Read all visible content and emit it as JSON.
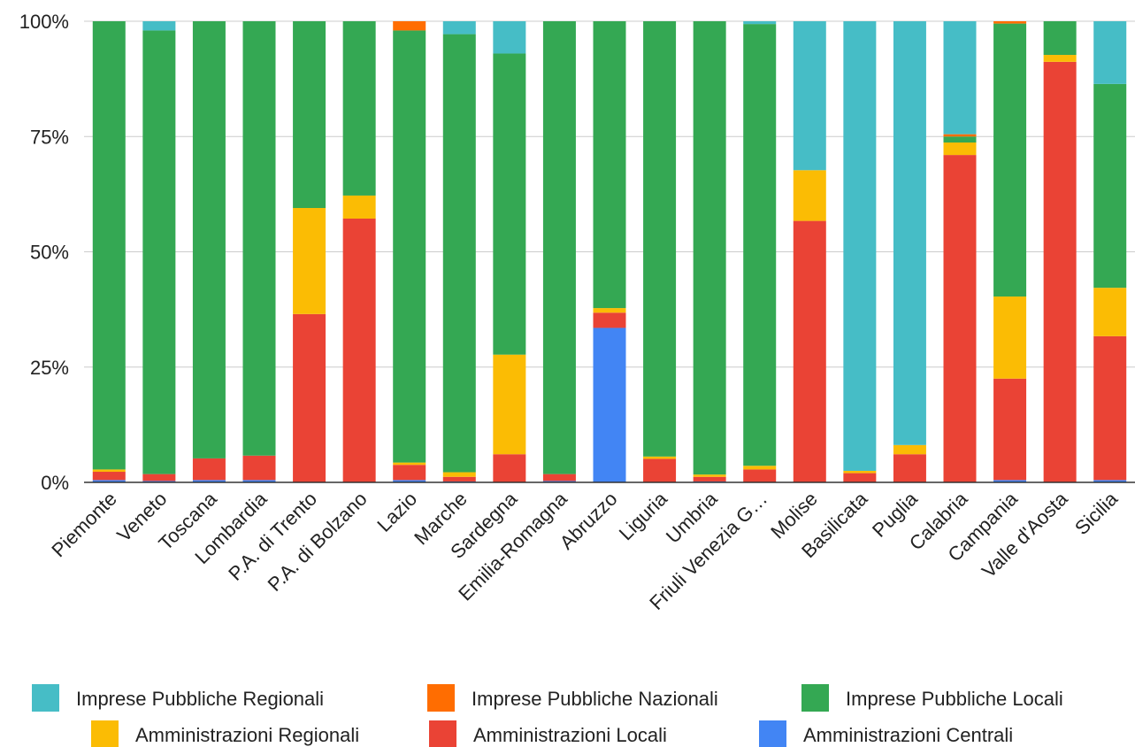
{
  "chart_data": {
    "type": "bar",
    "stacked": true,
    "normalized": true,
    "categories": [
      "Piemonte",
      "Veneto",
      "Toscana",
      "Lombardia",
      "P.A. di Trento",
      "P.A. di Bolzano",
      "Lazio",
      "Marche",
      "Sardegna",
      "Emilia-Romagna",
      "Abruzzo",
      "Liguria",
      "Umbria",
      "Friuli Venezia G…",
      "Molise",
      "Basilicata",
      "Puglia",
      "Calabria",
      "Campania",
      "Valle d'Aosta",
      "Sicilia"
    ],
    "y_ticks": [
      "0%",
      "25%",
      "50%",
      "75%",
      "100%"
    ],
    "ylim": [
      0,
      100
    ],
    "grid": true,
    "legend_position": "bottom",
    "series": [
      {
        "name": "Amministrazioni Centrali",
        "color": "#4285f4",
        "values": [
          0.5,
          0.3,
          0.5,
          0.5,
          0,
          0,
          0.5,
          0.2,
          0,
          0.3,
          33.5,
          0,
          0.2,
          0,
          0,
          0,
          0,
          0,
          0.5,
          0,
          0.5
        ]
      },
      {
        "name": "Amministrazioni Locali",
        "color": "#ea4335",
        "values": [
          1.8,
          1.5,
          4.7,
          5.3,
          36.5,
          57.2,
          3.3,
          1.0,
          6.1,
          1.5,
          3.3,
          5.1,
          1.0,
          2.8,
          56.7,
          2.0,
          6.1,
          71.0,
          22.0,
          91.2,
          31.2
        ]
      },
      {
        "name": "Amministrazioni Regionali",
        "color": "#fbbc04",
        "values": [
          0.5,
          0,
          0,
          0,
          23.0,
          5.0,
          0.5,
          1.0,
          21.6,
          0,
          1.0,
          0.5,
          0.5,
          0.8,
          11.0,
          0.5,
          2.0,
          2.7,
          17.8,
          1.5,
          10.5
        ]
      },
      {
        "name": "Imprese Pubbliche Locali",
        "color": "#34a853",
        "values": [
          97.2,
          96.2,
          94.8,
          94.2,
          40.5,
          37.8,
          93.7,
          95.0,
          65.3,
          98.2,
          62.2,
          94.4,
          98.3,
          95.8,
          0,
          0,
          0,
          1.3,
          59.2,
          7.3,
          44.2
        ]
      },
      {
        "name": "Imprese Pubbliche Nazionali",
        "color": "#ff6d01",
        "values": [
          0,
          0,
          0,
          0,
          0,
          0,
          2.0,
          0,
          0,
          0,
          0,
          0,
          0,
          0,
          0,
          0,
          0,
          0.5,
          0.5,
          0,
          0
        ]
      },
      {
        "name": "Imprese Pubbliche Regionali",
        "color": "#46bdc6",
        "values": [
          0,
          2.0,
          0,
          0,
          0,
          0,
          0,
          2.8,
          7.0,
          0,
          0,
          0,
          0,
          0.6,
          32.3,
          97.5,
          91.9,
          24.5,
          0,
          0,
          13.6
        ]
      }
    ],
    "legend_order": [
      "Imprese Pubbliche Regionali",
      "Imprese Pubbliche Nazionali",
      "Imprese Pubbliche Locali",
      "Amministrazioni Regionali",
      "Amministrazioni Locali",
      "Amministrazioni Centrali"
    ]
  }
}
